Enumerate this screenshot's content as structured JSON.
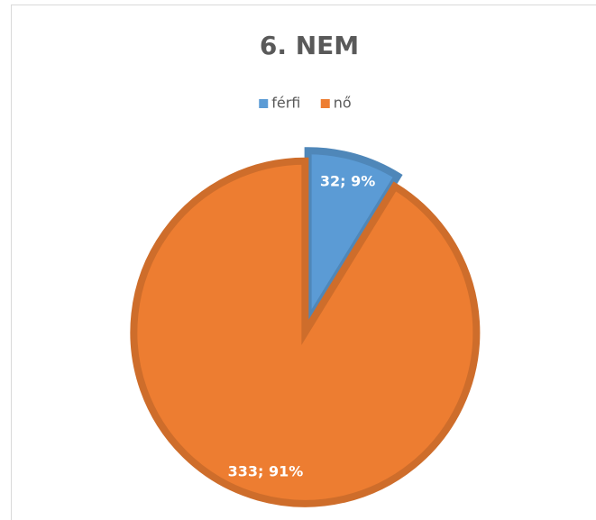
{
  "chart_data": {
    "type": "pie",
    "title": "6. NEM",
    "categories": [
      "férfi",
      "nő"
    ],
    "values": [
      32,
      333
    ],
    "value_labels": [
      "32; 9%",
      "333; 91%"
    ],
    "colors": [
      "#5b9bd5",
      "#ed7d31"
    ],
    "legend": "top"
  }
}
